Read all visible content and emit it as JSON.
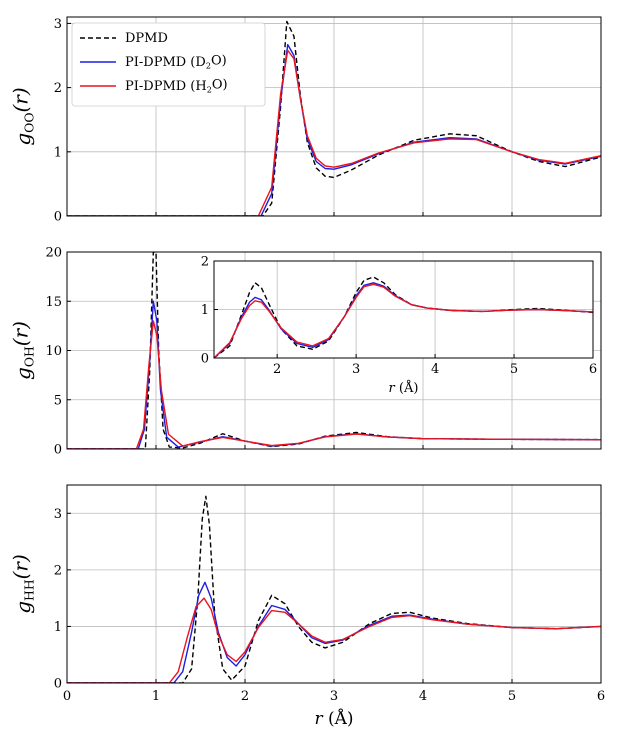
{
  "chart_data": [
    {
      "type": "line",
      "ylabel": "g_OO(r)",
      "ylabel_main": "g",
      "ylabel_sub": "OO",
      "ylabel_tail": "(r)",
      "xlim": [
        0,
        6
      ],
      "ylim": [
        0,
        3.1
      ],
      "yticks": [
        "0",
        "1",
        "2",
        "3"
      ],
      "xtick_labels_shown": false,
      "grid": true,
      "legend": {
        "placement": "top-left",
        "entries": [
          {
            "label": "DPMD",
            "color": "#000000",
            "dashed": true
          },
          {
            "label": "PI-DPMD (D",
            "sub": "2",
            "tail": "O)",
            "color": "#1f1fe0",
            "dashed": false
          },
          {
            "label": "PI-DPMD (H",
            "sub": "2",
            "tail": "O)",
            "color": "#e8141e",
            "dashed": false
          }
        ]
      },
      "series": [
        {
          "name": "DPMD",
          "color": "#000000",
          "dashed": true,
          "x": [
            0,
            2.2,
            2.3,
            2.4,
            2.47,
            2.55,
            2.62,
            2.7,
            2.8,
            2.9,
            3.0,
            3.2,
            3.5,
            3.9,
            4.3,
            4.6,
            5.0,
            5.3,
            5.6,
            6.0
          ],
          "y": [
            0,
            0,
            0.2,
            1.7,
            3.03,
            2.8,
            1.9,
            1.15,
            0.75,
            0.62,
            0.6,
            0.72,
            0.95,
            1.18,
            1.28,
            1.25,
            1.0,
            0.85,
            0.77,
            0.92
          ]
        },
        {
          "name": "PI-DPMD (D2O)",
          "color": "#1f1fe0",
          "dashed": false,
          "x": [
            0,
            2.18,
            2.3,
            2.4,
            2.48,
            2.55,
            2.62,
            2.7,
            2.8,
            2.9,
            3.0,
            3.2,
            3.5,
            3.9,
            4.3,
            4.6,
            5.0,
            5.3,
            5.6,
            6.0
          ],
          "y": [
            0,
            0,
            0.35,
            1.8,
            2.67,
            2.5,
            1.85,
            1.2,
            0.85,
            0.74,
            0.73,
            0.8,
            0.97,
            1.15,
            1.22,
            1.2,
            1.0,
            0.87,
            0.81,
            0.93
          ]
        },
        {
          "name": "PI-DPMD (H2O)",
          "color": "#e8141e",
          "dashed": false,
          "x": [
            0,
            2.15,
            2.3,
            2.4,
            2.48,
            2.55,
            2.62,
            2.7,
            2.8,
            2.9,
            3.0,
            3.2,
            3.5,
            3.9,
            4.3,
            4.6,
            5.0,
            5.3,
            5.6,
            6.0
          ],
          "y": [
            0,
            0,
            0.45,
            1.9,
            2.58,
            2.45,
            1.85,
            1.25,
            0.9,
            0.78,
            0.76,
            0.82,
            0.98,
            1.14,
            1.2,
            1.19,
            1.0,
            0.88,
            0.82,
            0.94
          ]
        }
      ]
    },
    {
      "type": "line",
      "ylabel": "g_OH(r)",
      "ylabel_main": "g",
      "ylabel_sub": "OH",
      "ylabel_tail": "(r)",
      "xlim": [
        0,
        6
      ],
      "ylim": [
        0,
        20
      ],
      "yticks": [
        "0",
        "5",
        "10",
        "15",
        "20"
      ],
      "xtick_labels_shown": false,
      "grid": true,
      "series": [
        {
          "name": "DPMD",
          "color": "#000000",
          "dashed": true,
          "x": [
            0,
            0.88,
            0.93,
            0.97,
            1.0,
            1.03,
            1.08,
            1.15,
            1.3,
            1.5,
            1.75,
            2.0,
            2.3,
            2.6,
            2.9,
            3.25,
            3.6,
            4.0,
            5.0,
            6.0
          ],
          "y": [
            0,
            0,
            8,
            20,
            20,
            10,
            2,
            0.2,
            0.1,
            0.6,
            1.55,
            0.8,
            0.25,
            0.5,
            1.3,
            1.68,
            1.25,
            1.05,
            0.98,
            0.95
          ]
        },
        {
          "name": "PI-DPMD (D2O)",
          "color": "#1f1fe0",
          "dashed": false,
          "x": [
            0,
            0.8,
            0.87,
            0.93,
            0.97,
            1.01,
            1.05,
            1.12,
            1.25,
            1.5,
            1.75,
            2.0,
            2.3,
            2.6,
            2.9,
            3.25,
            3.6,
            4.0,
            5.0,
            6.0
          ],
          "y": [
            0,
            0,
            2,
            9,
            15,
            13,
            6,
            1.2,
            0.2,
            0.7,
            1.25,
            0.8,
            0.3,
            0.55,
            1.25,
            1.55,
            1.22,
            1.05,
            0.98,
            0.95
          ]
        },
        {
          "name": "PI-DPMD (H2O)",
          "color": "#e8141e",
          "dashed": false,
          "x": [
            0,
            0.78,
            0.86,
            0.92,
            0.97,
            1.01,
            1.06,
            1.14,
            1.3,
            1.5,
            1.75,
            2.0,
            2.3,
            2.6,
            2.9,
            3.25,
            3.6,
            4.0,
            5.0,
            6.0
          ],
          "y": [
            0,
            0,
            2,
            8.5,
            13,
            11.5,
            6,
            1.5,
            0.3,
            0.75,
            1.18,
            0.8,
            0.35,
            0.58,
            1.22,
            1.52,
            1.22,
            1.05,
            0.98,
            0.95
          ]
        }
      ],
      "inset": {
        "xlim": [
          1.2,
          6
        ],
        "ylim": [
          0,
          2
        ],
        "xticks": [
          "2",
          "3",
          "4",
          "5",
          "6"
        ],
        "yticks": [
          "0",
          "1",
          "2"
        ],
        "xlabel_main": "r",
        "xlabel_tail": "(Å)",
        "series": [
          {
            "name": "DPMD",
            "color": "#000000",
            "dashed": true,
            "x": [
              1.2,
              1.4,
              1.55,
              1.65,
              1.72,
              1.8,
              1.9,
              2.05,
              2.25,
              2.45,
              2.65,
              2.85,
              3.0,
              3.1,
              3.22,
              3.35,
              3.5,
              3.7,
              3.9,
              4.2,
              4.6,
              5.0,
              5.3,
              5.6,
              6.0
            ],
            "y": [
              0,
              0.25,
              0.9,
              1.35,
              1.55,
              1.45,
              1.1,
              0.6,
              0.25,
              0.18,
              0.35,
              0.85,
              1.35,
              1.6,
              1.67,
              1.55,
              1.3,
              1.1,
              1.03,
              0.98,
              0.96,
              1.0,
              1.02,
              0.99,
              0.94
            ]
          },
          {
            "name": "PI-DPMD (D2O)",
            "color": "#1f1fe0",
            "dashed": false,
            "x": [
              1.2,
              1.4,
              1.55,
              1.65,
              1.72,
              1.8,
              1.9,
              2.05,
              2.25,
              2.45,
              2.65,
              2.85,
              3.0,
              3.1,
              3.22,
              3.35,
              3.5,
              3.7,
              3.9,
              4.2,
              4.6,
              5.0,
              5.3,
              5.6,
              6.0
            ],
            "y": [
              0,
              0.3,
              0.85,
              1.15,
              1.25,
              1.2,
              0.98,
              0.6,
              0.3,
              0.22,
              0.38,
              0.85,
              1.28,
              1.5,
              1.55,
              1.48,
              1.28,
              1.1,
              1.03,
              0.98,
              0.96,
              0.99,
              1.0,
              0.98,
              0.95
            ]
          },
          {
            "name": "PI-DPMD (H2O)",
            "color": "#e8141e",
            "dashed": false,
            "x": [
              1.2,
              1.4,
              1.55,
              1.65,
              1.72,
              1.8,
              1.9,
              2.05,
              2.25,
              2.45,
              2.65,
              2.85,
              3.0,
              3.1,
              3.22,
              3.35,
              3.5,
              3.7,
              3.9,
              4.2,
              4.6,
              5.0,
              5.3,
              5.6,
              6.0
            ],
            "y": [
              0,
              0.32,
              0.82,
              1.08,
              1.18,
              1.15,
              0.96,
              0.62,
              0.33,
              0.25,
              0.4,
              0.85,
              1.25,
              1.47,
              1.52,
              1.46,
              1.27,
              1.1,
              1.03,
              0.98,
              0.96,
              0.99,
              1.0,
              0.98,
              0.95
            ]
          }
        ]
      }
    },
    {
      "type": "line",
      "ylabel": "g_HH(r)",
      "ylabel_main": "g",
      "ylabel_sub": "HH",
      "ylabel_tail": "(r)",
      "xlim": [
        0,
        6
      ],
      "ylim": [
        0,
        3.5
      ],
      "yticks": [
        "0",
        "1",
        "2",
        "3"
      ],
      "xticks": [
        "0",
        "1",
        "2",
        "3",
        "4",
        "5",
        "6"
      ],
      "xlabel_main": "r",
      "xlabel_tail": "(Å)",
      "grid": true,
      "series": [
        {
          "name": "DPMD",
          "color": "#000000",
          "dashed": true,
          "x": [
            0,
            1.3,
            1.4,
            1.47,
            1.52,
            1.56,
            1.6,
            1.66,
            1.75,
            1.85,
            2.0,
            2.15,
            2.3,
            2.45,
            2.6,
            2.75,
            2.9,
            3.1,
            3.4,
            3.65,
            3.85,
            4.1,
            4.5,
            5.0,
            5.5,
            6.0
          ],
          "y": [
            0,
            0,
            0.25,
            1.5,
            2.9,
            3.3,
            2.8,
            1.2,
            0.25,
            0.05,
            0.3,
            1.1,
            1.55,
            1.4,
            1.0,
            0.72,
            0.62,
            0.72,
            1.05,
            1.23,
            1.25,
            1.15,
            1.05,
            0.98,
            0.96,
            1.0
          ]
        },
        {
          "name": "PI-DPMD (D2O)",
          "color": "#1f1fe0",
          "dashed": false,
          "x": [
            0,
            1.2,
            1.3,
            1.4,
            1.48,
            1.55,
            1.62,
            1.7,
            1.8,
            1.9,
            2.0,
            2.15,
            2.3,
            2.45,
            2.6,
            2.75,
            2.9,
            3.1,
            3.4,
            3.65,
            3.85,
            4.1,
            4.5,
            5.0,
            5.5,
            6.0
          ],
          "y": [
            0,
            0,
            0.2,
            0.9,
            1.55,
            1.78,
            1.5,
            0.9,
            0.45,
            0.3,
            0.5,
            1.0,
            1.37,
            1.3,
            1.05,
            0.8,
            0.7,
            0.76,
            1.02,
            1.18,
            1.2,
            1.13,
            1.04,
            0.98,
            0.96,
            1.0
          ]
        },
        {
          "name": "PI-DPMD (H2O)",
          "color": "#e8141e",
          "dashed": false,
          "x": [
            0,
            1.15,
            1.25,
            1.35,
            1.45,
            1.54,
            1.62,
            1.7,
            1.8,
            1.9,
            2.0,
            2.15,
            2.3,
            2.45,
            2.6,
            2.75,
            2.9,
            3.1,
            3.4,
            3.65,
            3.85,
            4.1,
            4.5,
            5.0,
            5.5,
            6.0
          ],
          "y": [
            0,
            0,
            0.2,
            0.8,
            1.35,
            1.5,
            1.3,
            0.85,
            0.5,
            0.38,
            0.55,
            0.98,
            1.28,
            1.25,
            1.05,
            0.83,
            0.72,
            0.77,
            1.0,
            1.16,
            1.19,
            1.12,
            1.04,
            0.98,
            0.96,
            1.0
          ]
        }
      ]
    }
  ]
}
